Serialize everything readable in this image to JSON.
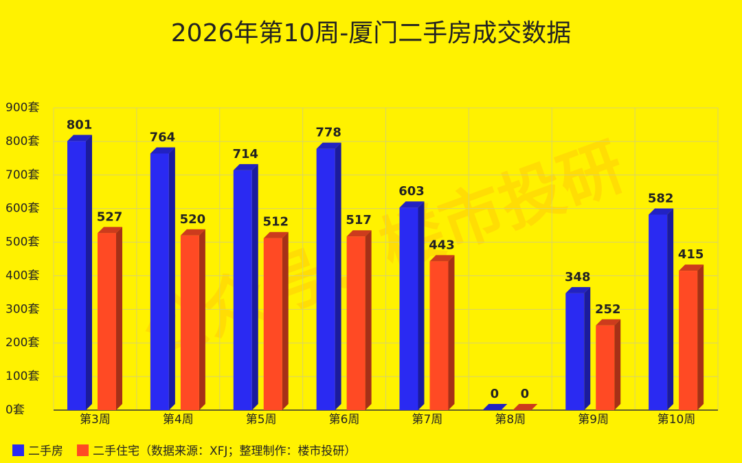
{
  "chart_data": {
    "type": "bar3d",
    "title": "2026年第10周-厦门二手房成交数据",
    "categories": [
      "第3周",
      "第4周",
      "第5周",
      "第6周",
      "第7周",
      "第8周",
      "第9周",
      "第10周"
    ],
    "series": [
      {
        "name": "二手房",
        "color": "#2a2af2",
        "values": [
          801,
          764,
          714,
          778,
          603,
          0,
          348,
          582
        ]
      },
      {
        "name": "二手住宅",
        "color": "#ff4a24",
        "values": [
          527,
          520,
          512,
          517,
          443,
          0,
          252,
          415
        ]
      }
    ],
    "legend_note": "（数据来源：XFJ；整理制作：楼市投研）",
    "watermark": "公众号：楼市投研",
    "ylim": [
      0,
      900
    ],
    "yticks": [
      {
        "value": 0,
        "label": "0套"
      },
      {
        "value": 100,
        "label": "100套"
      },
      {
        "value": 200,
        "label": "200套"
      },
      {
        "value": 300,
        "label": "300套"
      },
      {
        "value": 400,
        "label": "400套"
      },
      {
        "value": 500,
        "label": "500套"
      },
      {
        "value": 600,
        "label": "600套"
      },
      {
        "value": 700,
        "label": "700套"
      },
      {
        "value": 800,
        "label": "800套"
      },
      {
        "value": 900,
        "label": "900套"
      }
    ],
    "grid": true
  }
}
